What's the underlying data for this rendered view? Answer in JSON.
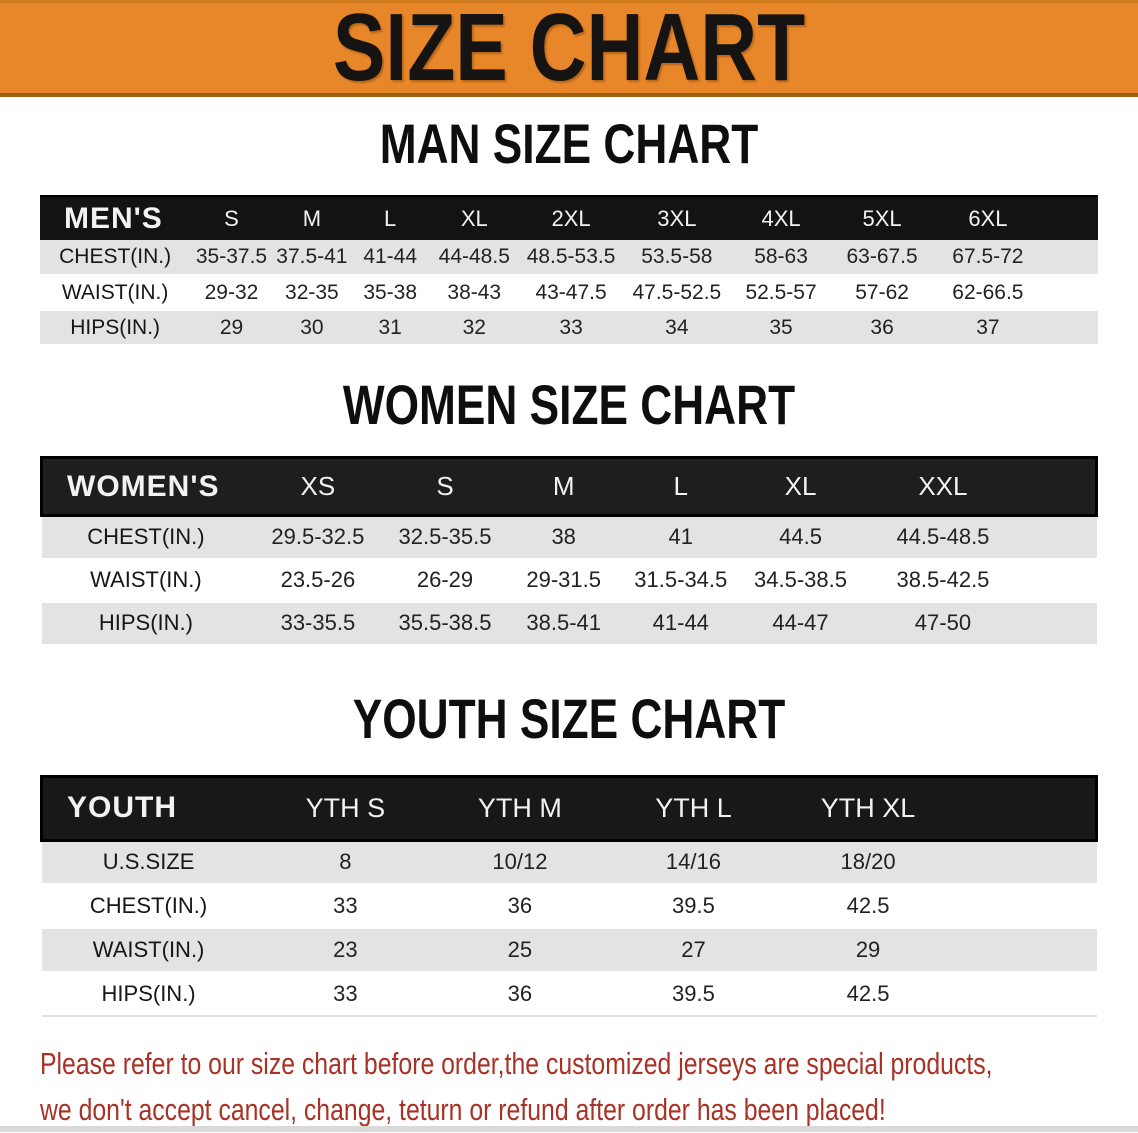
{
  "banner": {
    "title": "SIZE CHART"
  },
  "colors": {
    "banner_bg": "#E8862A",
    "footer_text": "#A93226",
    "header_bar": "#141414",
    "row_gray": "#E3E3E3"
  },
  "men": {
    "heading": "MAN SIZE CHART",
    "table": {
      "header": [
        "MEN'S",
        "S",
        "M",
        "L",
        "XL",
        "2XL",
        "3XL",
        "4XL",
        "5XL",
        "6XL",
        ""
      ],
      "col_widths": [
        "14.2%",
        "7.8%",
        "7.4%",
        "7.4%",
        "8.5%",
        "9.8%",
        "10.2%",
        "9.5%",
        "9.6%",
        "10.4%",
        "5.2%"
      ],
      "rows": [
        {
          "bg": "gray",
          "cells": [
            "CHEST(IN.)",
            "35-37.5",
            "37.5-41",
            "41-44",
            "44-48.5",
            "48.5-53.5",
            "53.5-58",
            "58-63",
            "63-67.5",
            "67.5-72",
            ""
          ]
        },
        {
          "bg": "white",
          "cells": [
            "WAIST(IN.)",
            "29-32",
            "32-35",
            "35-38",
            "38-43",
            "43-47.5",
            "47.5-52.5",
            "52.5-57",
            "57-62",
            "62-66.5",
            ""
          ]
        },
        {
          "bg": "gray",
          "cells": [
            "HIPS(IN.)",
            "29",
            "30",
            "31",
            "32",
            "33",
            "34",
            "35",
            "36",
            "37",
            ""
          ]
        }
      ]
    }
  },
  "women": {
    "heading": "WOMEN SIZE CHART",
    "table": {
      "header": [
        "WOMEN'S",
        "XS",
        "S",
        "M",
        "L",
        "XL",
        "XXL",
        ""
      ],
      "col_widths": [
        "19.8%",
        "12.8%",
        "11.3%",
        "11.2%",
        "11.0%",
        "11.7%",
        "15.3%",
        "6.9%"
      ],
      "rows": [
        {
          "bg": "gray",
          "cells": [
            "CHEST(IN.)",
            "29.5-32.5",
            "32.5-35.5",
            "38",
            "41",
            "44.5",
            "44.5-48.5",
            ""
          ]
        },
        {
          "bg": "white",
          "cells": [
            "WAIST(IN.)",
            "23.5-26",
            "26-29",
            "29-31.5",
            "31.5-34.5",
            "34.5-38.5",
            "38.5-42.5",
            ""
          ]
        },
        {
          "bg": "gray",
          "cells": [
            "HIPS(IN.)",
            "33-35.5",
            "35.5-38.5",
            "38.5-41",
            "41-44",
            "44-47",
            "47-50",
            ""
          ]
        }
      ]
    }
  },
  "youth": {
    "heading": "YOUTH SIZE CHART",
    "table": {
      "header": [
        "YOUTH",
        "YTH S",
        "YTH M",
        "YTH L",
        "YTH XL",
        ""
      ],
      "col_widths": [
        "20.3%",
        "17.0%",
        "16.1%",
        "16.8%",
        "16.3%",
        "13.5%"
      ],
      "rows": [
        {
          "bg": "gray",
          "cells": [
            "U.S.SIZE",
            "8",
            "10/12",
            "14/16",
            "18/20",
            ""
          ]
        },
        {
          "bg": "white",
          "cells": [
            "CHEST(IN.)",
            "33",
            "36",
            "39.5",
            "42.5",
            ""
          ]
        },
        {
          "bg": "gray",
          "cells": [
            "WAIST(IN.)",
            "23",
            "25",
            "27",
            "29",
            ""
          ]
        },
        {
          "bg": "white",
          "cells": [
            "HIPS(IN.)",
            "33",
            "36",
            "39.5",
            "42.5",
            ""
          ]
        }
      ]
    }
  },
  "footer": {
    "line1": "Please refer to our size chart before order,the customized jerseys are special products,",
    "line2": "we don't accept cancel, change, teturn or refund after order has been placed!"
  }
}
